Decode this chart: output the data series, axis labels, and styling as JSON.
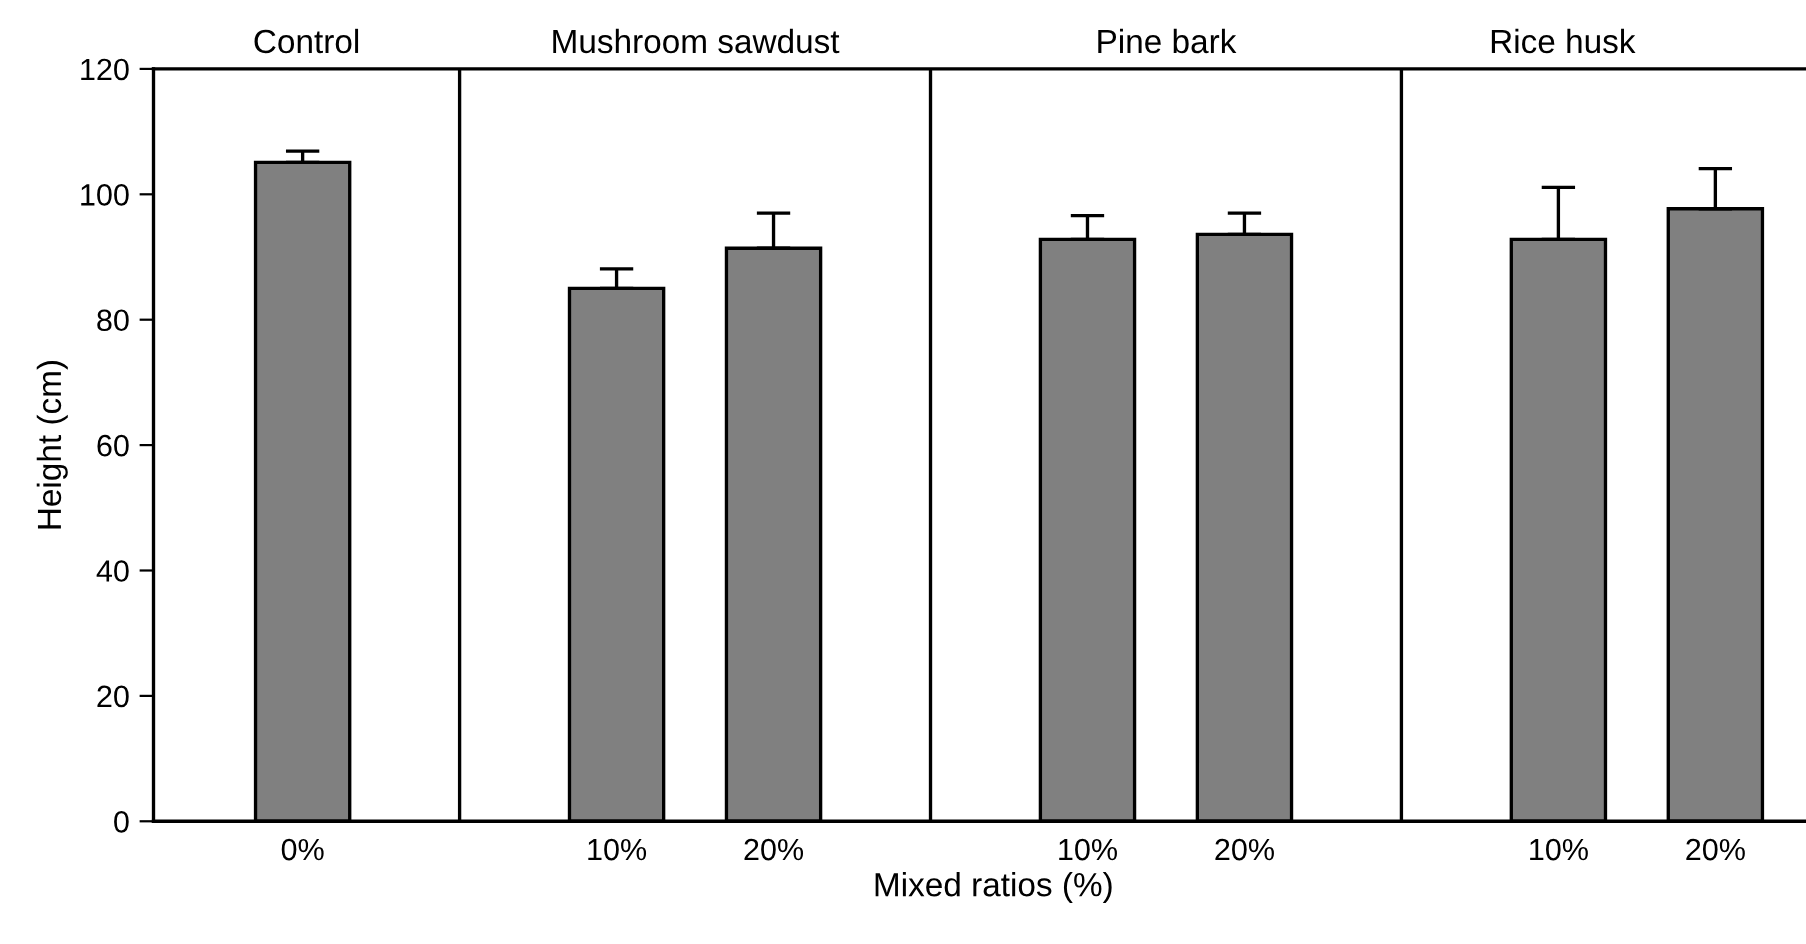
{
  "chart_data": {
    "type": "bar",
    "xlabel": "Mixed ratios (%)",
    "ylabel": "Height (cm)",
    "categories": [
      "0%",
      null,
      "10%",
      "20%",
      null,
      "10%",
      "20%",
      null,
      "10%",
      "20%"
    ],
    "values": [
      105.1,
      null,
      85.0,
      91.4,
      null,
      92.8,
      93.6,
      null,
      92.8,
      97.7
    ],
    "errors": [
      [
        105.1,
        106.9
      ],
      null,
      [
        85.0,
        88.1
      ],
      [
        91.4,
        97.0
      ],
      null,
      [
        92.8,
        96.6
      ],
      [
        93.6,
        97.0
      ],
      null,
      [
        92.8,
        101.1
      ],
      [
        97.7,
        104.1
      ]
    ],
    "color": "#808080",
    "ylim": [
      0,
      120
    ],
    "yticks": [
      0,
      20,
      40,
      60,
      80,
      100,
      120
    ],
    "grid": "x",
    "annotations": [
      "Control",
      "Mushroom sawdust",
      "Pine bark",
      "Rice husk"
    ]
  }
}
